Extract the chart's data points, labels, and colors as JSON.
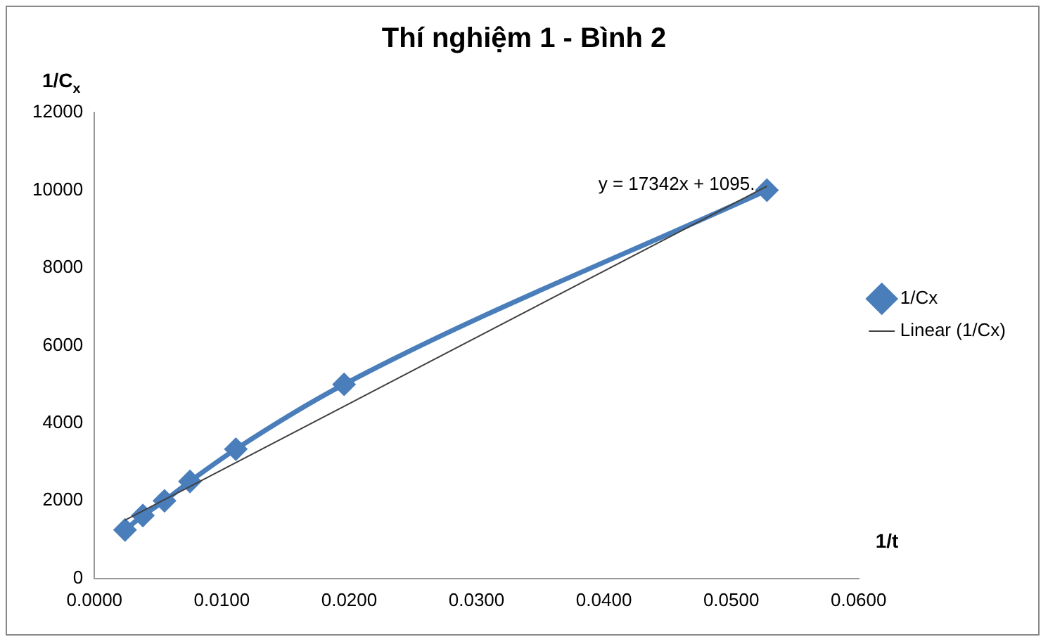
{
  "chart_data": {
    "type": "line",
    "title": "Thí nghiệm 1 - Bình 2",
    "xlabel": "1/t",
    "ylabel": "1/C$_{x}$",
    "annotations": [
      "y = 17342x + 1095."
    ],
    "xlim": [
      0,
      0.06
    ],
    "xticks": [
      {
        "value": 0,
        "label": "0.0000"
      },
      {
        "value": 0.01,
        "label": "0.0100"
      },
      {
        "value": 0.02,
        "label": "0.0200"
      },
      {
        "value": 0.03,
        "label": "0.0300"
      },
      {
        "value": 0.04,
        "label": "0.0400"
      },
      {
        "value": 0.05,
        "label": "0.0500"
      },
      {
        "value": 0.06,
        "label": "0.0600"
      }
    ],
    "ylim": [
      0,
      12000
    ],
    "yticks": [
      0,
      2000,
      4000,
      6000,
      8000,
      10000,
      12000
    ],
    "grid": false,
    "legend": "right",
    "series": [
      {
        "name": "1/Cx",
        "color": "#4a7ebb",
        "marker": "diamond",
        "line_style": "solid",
        "x": [
          0.0024,
          0.0038,
          0.0055,
          0.0075,
          0.0111,
          0.0196,
          0.0528
        ],
        "values": [
          1250,
          1620,
          2000,
          2500,
          3330,
          5000,
          10000
        ]
      },
      {
        "name": "Linear (1/Cx)",
        "color": "#404040",
        "marker": "none",
        "line_style": "solid",
        "x": [
          0.0024,
          0.0528
        ],
        "values": [
          1500,
          10100
        ]
      }
    ]
  }
}
